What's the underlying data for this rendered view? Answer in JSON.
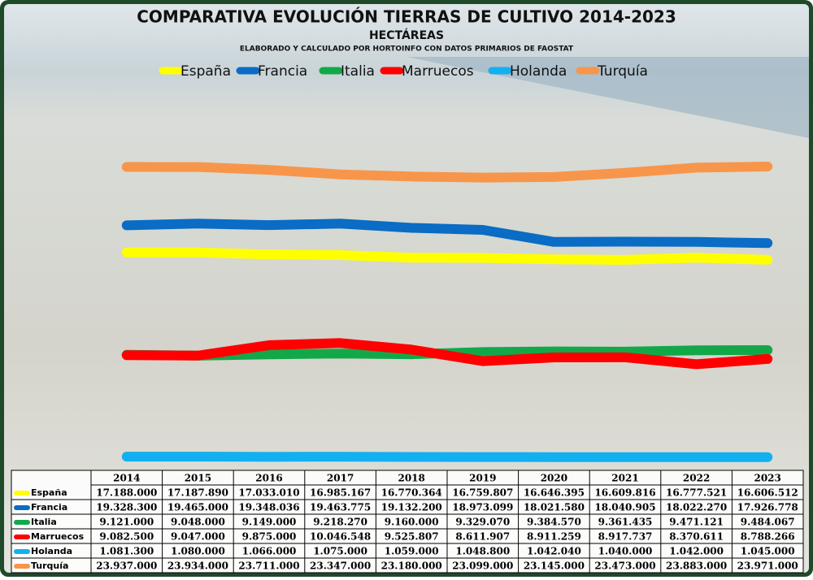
{
  "chart_data": {
    "type": "line",
    "title": "COMPARATIVA EVOLUCIÓN TIERRAS DE CULTIVO 2014-2023",
    "subtitle": "HECTÁREAS",
    "note": "ELABORADO Y CALCULADO POR HORTOINFO CON DATOS PRIMARIOS DE FAOSTAT",
    "categories": [
      "2014",
      "2015",
      "2016",
      "2017",
      "2018",
      "2019",
      "2020",
      "2021",
      "2022",
      "2023"
    ],
    "series": [
      {
        "name": "España",
        "color": "#ffff00",
        "values": [
          17188000,
          17187890,
          17033010,
          16985167,
          16770364,
          16759807,
          16646395,
          16609816,
          16777521,
          16606512
        ],
        "value_labels": [
          "17.188.000",
          "17.187.890",
          "17.033.010",
          "16.985.167",
          "16.770.364",
          "16.759.807",
          "16.646.395",
          "16.609.816",
          "16.777.521",
          "16.606.512"
        ]
      },
      {
        "name": "Francia",
        "color": "#0a6cc4",
        "values": [
          19328300,
          19465000,
          19348036,
          19463775,
          19132200,
          18973099,
          18021580,
          18040905,
          18022270,
          17926778
        ],
        "value_labels": [
          "19.328.300",
          "19.465.000",
          "19.348.036",
          "19.463.775",
          "19.132.200",
          "18.973.099",
          "18.021.580",
          "18.040.905",
          "18.022.270",
          "17.926.778"
        ]
      },
      {
        "name": "Italia",
        "color": "#12a84a",
        "values": [
          9121000,
          9048000,
          9149000,
          9218270,
          9160000,
          9329070,
          9384570,
          9361435,
          9471121,
          9484067
        ],
        "value_labels": [
          "9.121.000",
          "9.048.000",
          "9.149.000",
          "9.218.270",
          "9.160.000",
          "9.329.070",
          "9.384.570",
          "9.361.435",
          "9.471.121",
          "9.484.067"
        ]
      },
      {
        "name": "Marruecos",
        "color": "#ff0000",
        "values": [
          9082500,
          9047000,
          9875000,
          10046548,
          9525807,
          8611907,
          8911259,
          8917737,
          8370611,
          8788266
        ],
        "value_labels": [
          "9.082.500",
          "9.047.000",
          "9.875.000",
          "10.046.548",
          "9.525.807",
          "8.611.907",
          "8.911.259",
          "8.917.737",
          "8.370.611",
          "8.788.266"
        ]
      },
      {
        "name": "Holanda",
        "color": "#12b0f0",
        "values": [
          1081300,
          1080000,
          1066000,
          1075000,
          1059000,
          1048800,
          1042040,
          1040000,
          1042000,
          1045000
        ],
        "value_labels": [
          "1.081.300",
          "1.080.000",
          "1.066.000",
          "1.075.000",
          "1.059.000",
          "1.048.800",
          "1.042.040",
          "1.040.000",
          "1.042.000",
          "1.045.000"
        ]
      },
      {
        "name": "Turquía",
        "color": "#f7964a",
        "values": [
          23937000,
          23934000,
          23711000,
          23347000,
          23180000,
          23099000,
          23145000,
          23473000,
          23883000,
          23971000
        ],
        "value_labels": [
          "23.937.000",
          "23.934.000",
          "23.711.000",
          "23.347.000",
          "23.180.000",
          "23.099.000",
          "23.145.000",
          "23.473.000",
          "23.883.000",
          "23.971.000"
        ]
      }
    ]
  }
}
